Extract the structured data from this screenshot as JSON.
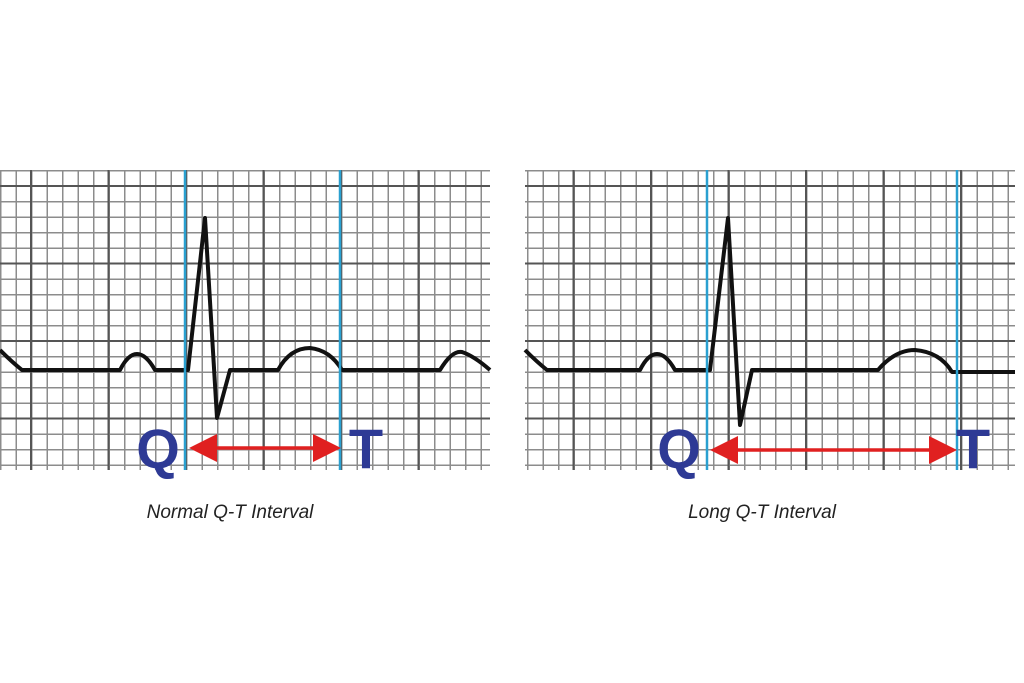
{
  "panels": [
    {
      "q_label": "Q",
      "t_label": "T",
      "caption": "Normal Q-T Interval"
    },
    {
      "q_label": "Q",
      "t_label": "T",
      "caption": "Long Q-T Interval"
    }
  ]
}
